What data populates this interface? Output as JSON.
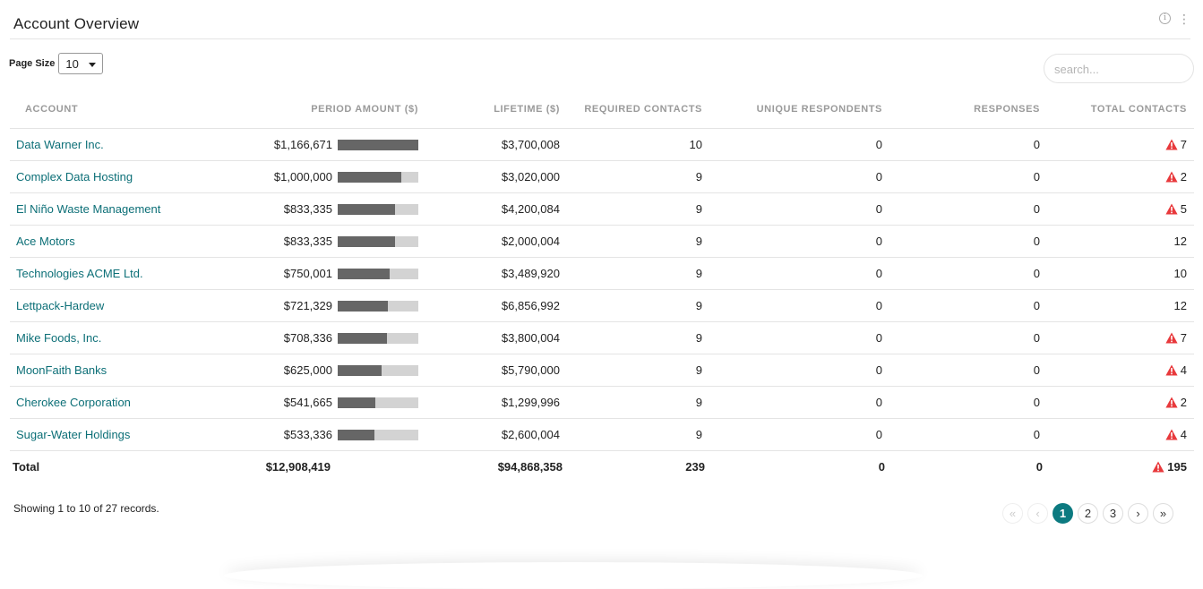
{
  "header": {
    "title": "Account Overview"
  },
  "page_size": {
    "label": "Page Size",
    "value": "10"
  },
  "search": {
    "placeholder": "search..."
  },
  "columns": [
    "ACCOUNT",
    "PERIOD AMOUNT ($)",
    "LIFETIME ($)",
    "REQUIRED CONTACTS",
    "UNIQUE RESPONDENTS",
    "RESPONSES",
    "TOTAL CONTACTS"
  ],
  "rows": [
    {
      "account": "Data Warner Inc.",
      "period": "$1,166,671",
      "bar": 1.0,
      "lifetime": "$3,700,008",
      "required": "10",
      "unique": "0",
      "responses": "0",
      "total": "7",
      "warn": true
    },
    {
      "account": "Complex Data Hosting",
      "period": "$1,000,000",
      "bar": 0.79,
      "lifetime": "$3,020,000",
      "required": "9",
      "unique": "0",
      "responses": "0",
      "total": "2",
      "warn": true
    },
    {
      "account": "El Niño Waste Management",
      "period": "$833,335",
      "bar": 0.71,
      "lifetime": "$4,200,084",
      "required": "9",
      "unique": "0",
      "responses": "0",
      "total": "5",
      "warn": true
    },
    {
      "account": "Ace Motors",
      "period": "$833,335",
      "bar": 0.71,
      "lifetime": "$2,000,004",
      "required": "9",
      "unique": "0",
      "responses": "0",
      "total": "12",
      "warn": false
    },
    {
      "account": "Technologies ACME Ltd.",
      "period": "$750,001",
      "bar": 0.64,
      "lifetime": "$3,489,920",
      "required": "9",
      "unique": "0",
      "responses": "0",
      "total": "10",
      "warn": false
    },
    {
      "account": "Lettpack-Hardew",
      "period": "$721,329",
      "bar": 0.62,
      "lifetime": "$6,856,992",
      "required": "9",
      "unique": "0",
      "responses": "0",
      "total": "12",
      "warn": false
    },
    {
      "account": "Mike Foods, Inc.",
      "period": "$708,336",
      "bar": 0.61,
      "lifetime": "$3,800,004",
      "required": "9",
      "unique": "0",
      "responses": "0",
      "total": "7",
      "warn": true
    },
    {
      "account": "MoonFaith Banks",
      "period": "$625,000",
      "bar": 0.54,
      "lifetime": "$5,790,000",
      "required": "9",
      "unique": "0",
      "responses": "0",
      "total": "4",
      "warn": true
    },
    {
      "account": "Cherokee Corporation",
      "period": "$541,665",
      "bar": 0.47,
      "lifetime": "$1,299,996",
      "required": "9",
      "unique": "0",
      "responses": "0",
      "total": "2",
      "warn": true
    },
    {
      "account": "Sugar-Water Holdings",
      "period": "$533,336",
      "bar": 0.46,
      "lifetime": "$2,600,004",
      "required": "9",
      "unique": "0",
      "responses": "0",
      "total": "4",
      "warn": true
    }
  ],
  "totals": {
    "label": "Total",
    "period": "$12,908,419",
    "lifetime": "$94,868,358",
    "required": "239",
    "unique": "0",
    "responses": "0",
    "total": "195",
    "warn": true
  },
  "footer": {
    "showing": "Showing 1 to 10 of 27 records."
  },
  "pagination": {
    "pages": [
      "1",
      "2",
      "3"
    ],
    "current": "1"
  },
  "colors": {
    "link": "#0c6f77",
    "warning": "#e8393c",
    "active_page": "#0c7a80",
    "bar_fill": "#666666",
    "bar_track": "#d3d3d3"
  }
}
